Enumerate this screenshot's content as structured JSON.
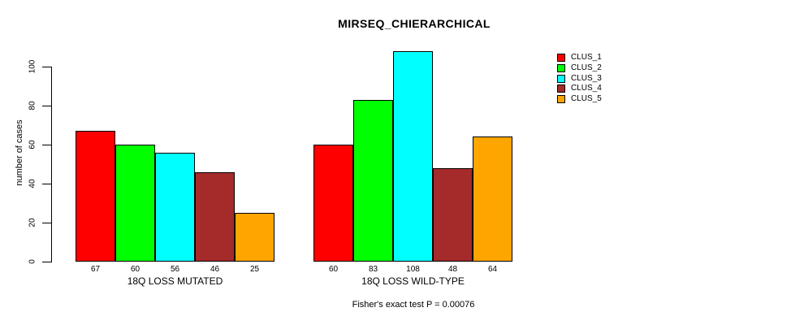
{
  "chart_data": {
    "type": "bar",
    "title": "MIRSEQ_CHIERARCHICAL",
    "ylabel": "number of cases",
    "xlabel": "",
    "yticks": [
      0,
      20,
      40,
      60,
      80,
      100
    ],
    "ylim": [
      0,
      110
    ],
    "grid": false,
    "legend_position": "top-right-inside",
    "categories": [
      "18Q LOSS MUTATED",
      "18Q LOSS WILD-TYPE"
    ],
    "series": [
      {
        "name": "CLUS_1",
        "color": "#ff0000",
        "values": [
          67,
          60
        ]
      },
      {
        "name": "CLUS_2",
        "color": "#00ff00",
        "values": [
          60,
          83
        ]
      },
      {
        "name": "CLUS_3",
        "color": "#00ffff",
        "values": [
          56,
          108
        ]
      },
      {
        "name": "CLUS_4",
        "color": "#a52a2a",
        "values": [
          46,
          48
        ]
      },
      {
        "name": "CLUS_5",
        "color": "#ffa500",
        "values": [
          25,
          64
        ]
      }
    ],
    "bar_value_labels": [
      [
        67,
        60,
        56,
        46,
        25
      ],
      [
        60,
        83,
        108,
        48,
        64
      ]
    ],
    "annotation": "Fisher's exact test P = 0.00076"
  }
}
